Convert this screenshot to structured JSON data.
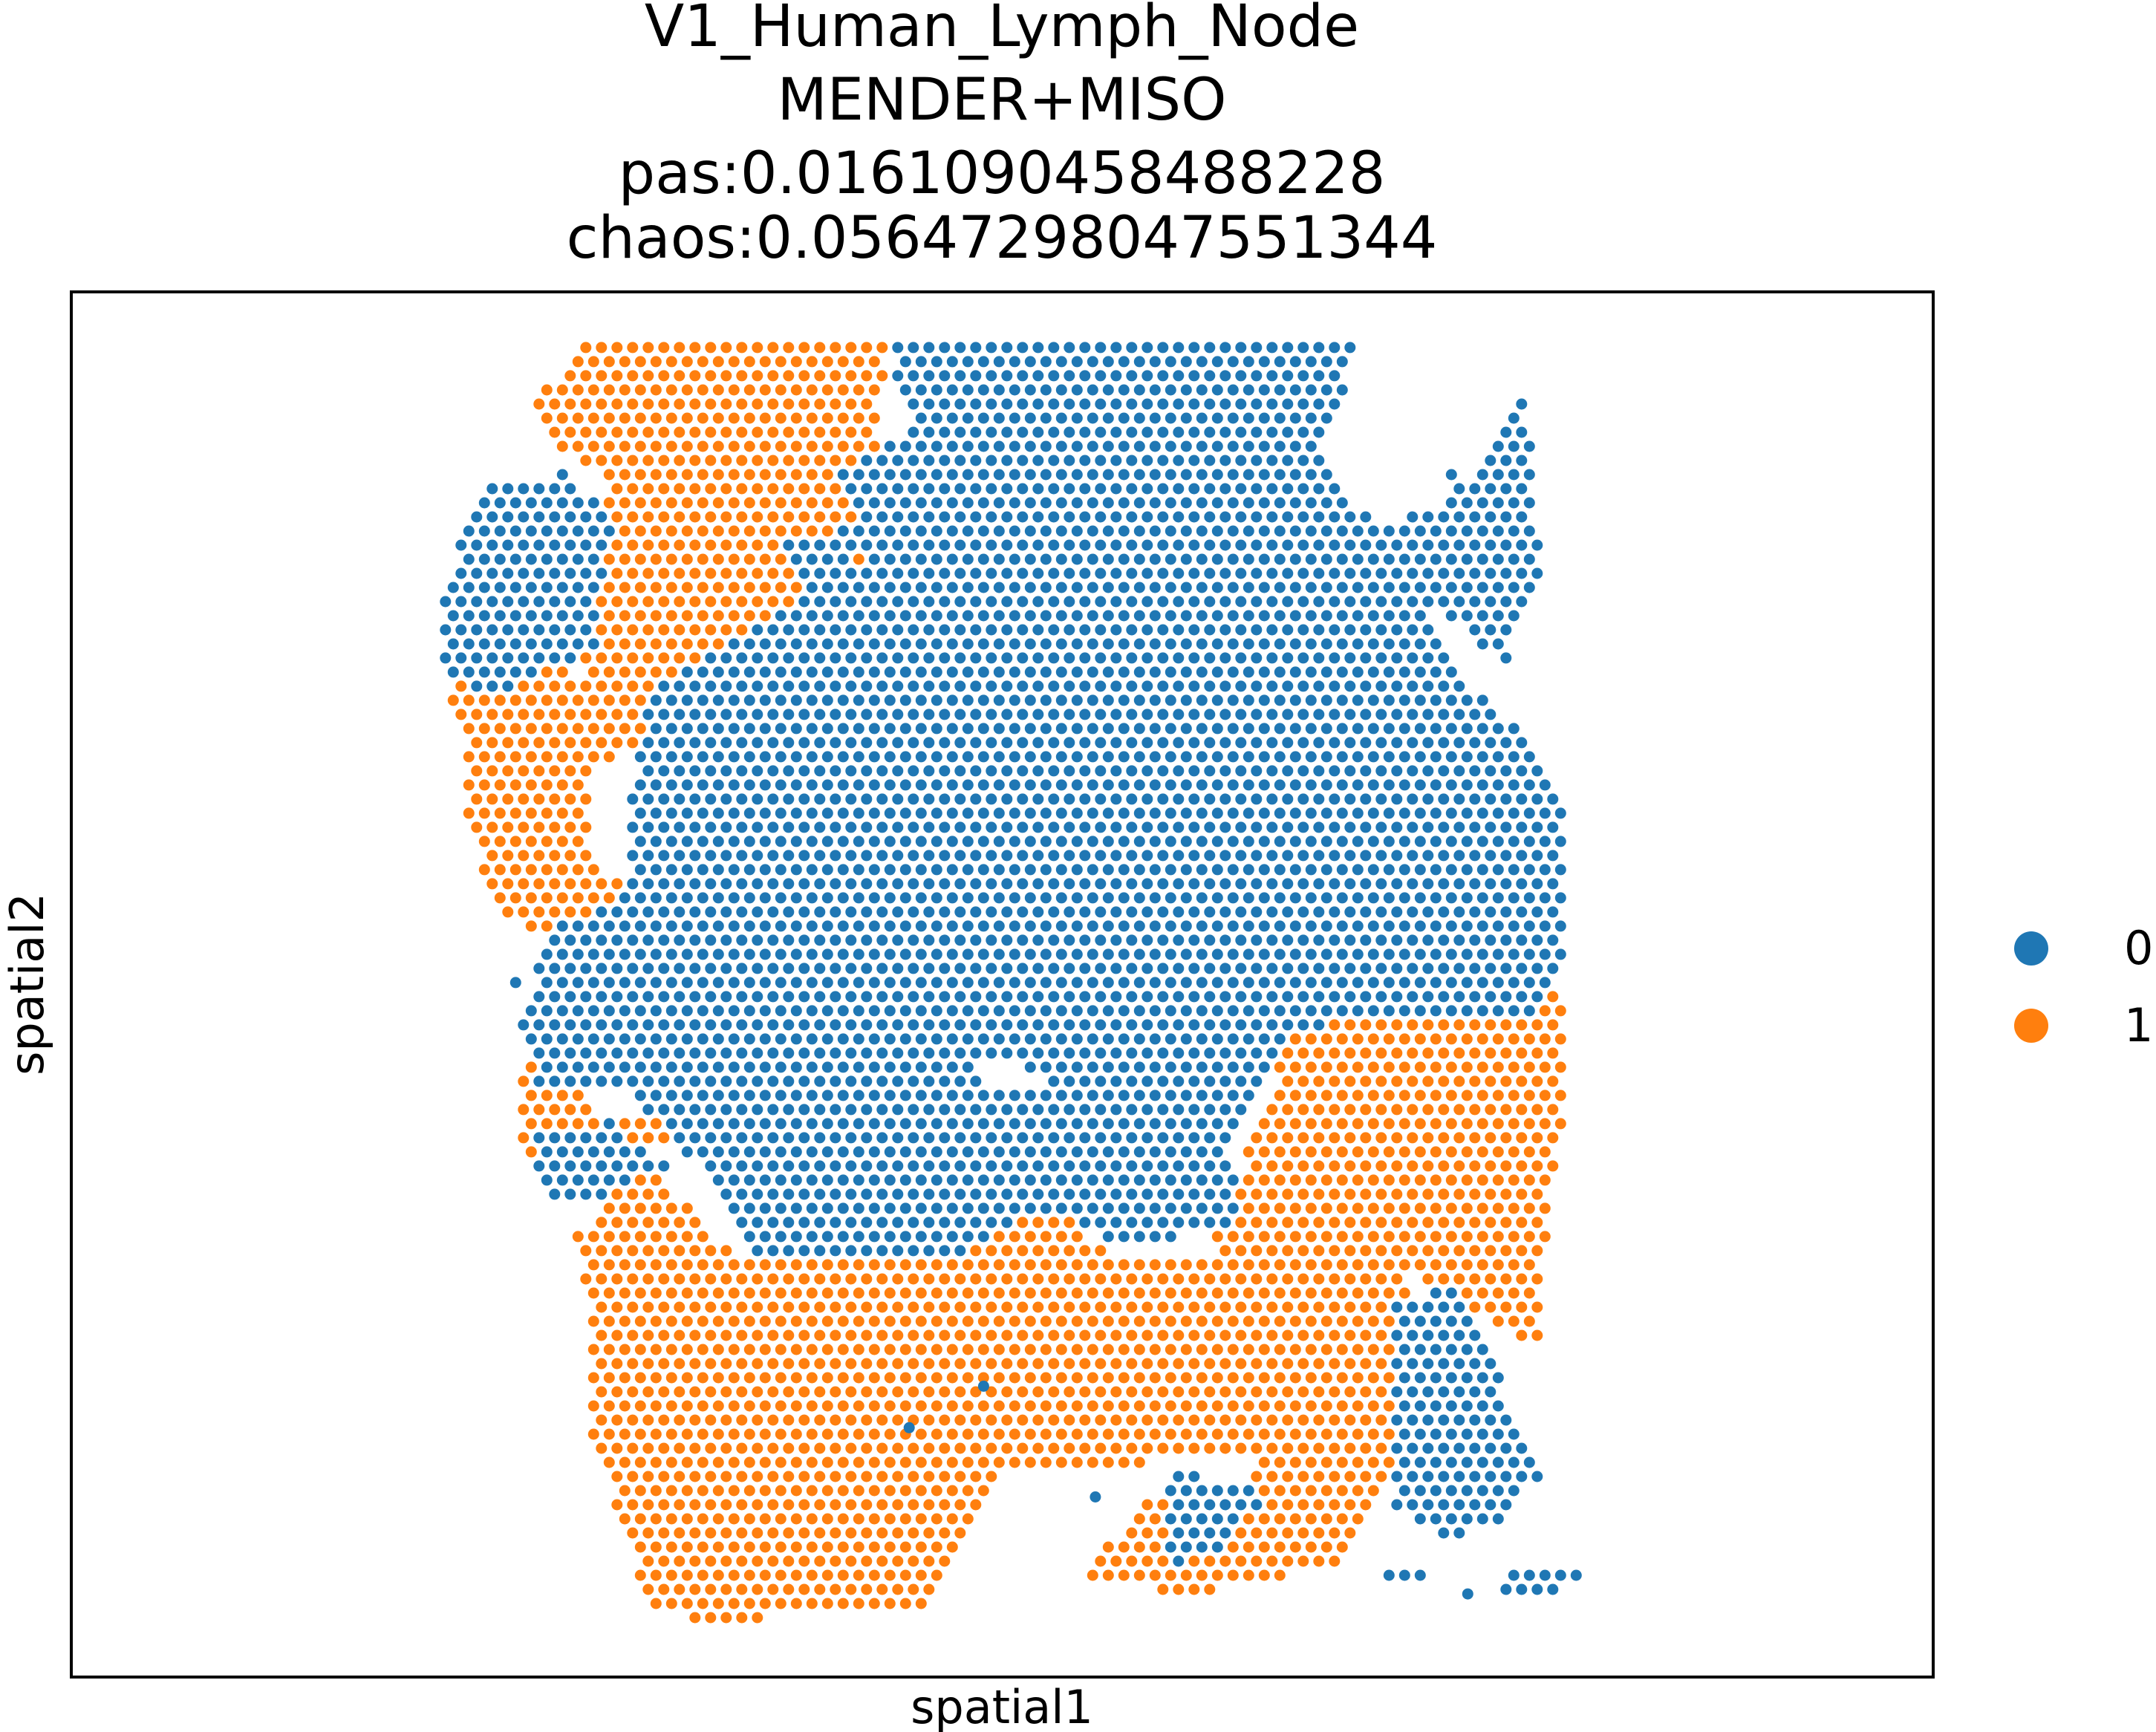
{
  "chart_data": {
    "type": "scatter",
    "title": [
      "V1_Human_Lymph_Node",
      "MENDER+MISO",
      "pas:0.0161090458488228",
      "chaos:0.05647298047551344"
    ],
    "xlabel": "spatial1",
    "ylabel": "spatial2",
    "xticks": [],
    "yticks": [],
    "grid": false,
    "legend_position": "right",
    "series": [
      {
        "name": "0",
        "color": "#1f77b4"
      },
      {
        "name": "1",
        "color": "#ff7f0e"
      }
    ],
    "regions": {
      "cluster_1": [
        [
          [
            0.27,
            0.04
          ],
          [
            0.44,
            0.04
          ],
          [
            0.43,
            0.1
          ],
          [
            0.45,
            0.2
          ],
          [
            0.39,
            0.23
          ],
          [
            0.33,
            0.28
          ],
          [
            0.29,
            0.31
          ],
          [
            0.27,
            0.27
          ],
          [
            0.29,
            0.14
          ],
          [
            0.26,
            0.11
          ],
          [
            0.25,
            0.08
          ],
          [
            0.26,
            0.06
          ]
        ],
        [
          [
            0.41,
            0.21
          ],
          [
            0.45,
            0.15
          ],
          [
            0.45,
            0.22
          ],
          [
            0.41,
            0.23
          ]
        ],
        [
          [
            0.22,
            0.23
          ],
          [
            0.26,
            0.27
          ],
          [
            0.33,
            0.3
          ],
          [
            0.28,
            0.35
          ],
          [
            0.28,
            0.4
          ],
          [
            0.3,
            0.44
          ],
          [
            0.27,
            0.47
          ],
          [
            0.23,
            0.45
          ],
          [
            0.21,
            0.37
          ],
          [
            0.21,
            0.31
          ],
          [
            0.2,
            0.29
          ]
        ],
        [
          [
            0.61,
            0.19
          ],
          [
            0.63,
            0.21
          ],
          [
            0.66,
            0.28
          ],
          [
            0.62,
            0.3
          ],
          [
            0.59,
            0.24
          ]
        ],
        [
          [
            0.24,
            0.55
          ],
          [
            0.27,
            0.56
          ],
          [
            0.29,
            0.61
          ],
          [
            0.26,
            0.66
          ],
          [
            0.24,
            0.61
          ]
        ],
        [
          [
            0.29,
            0.59
          ],
          [
            0.34,
            0.61
          ],
          [
            0.32,
            0.62
          ],
          [
            0.3,
            0.61
          ]
        ],
        [
          [
            0.66,
            0.52
          ],
          [
            0.8,
            0.5
          ],
          [
            0.8,
            0.6
          ],
          [
            0.79,
            0.7
          ],
          [
            0.79,
            0.76
          ],
          [
            0.74,
            0.73
          ],
          [
            0.72,
            0.71
          ],
          [
            0.71,
            0.75
          ],
          [
            0.71,
            0.85
          ],
          [
            0.68,
            0.92
          ],
          [
            0.6,
            0.94
          ],
          [
            0.54,
            0.93
          ],
          [
            0.58,
            0.87
          ],
          [
            0.62,
            0.87
          ],
          [
            0.64,
            0.84
          ],
          [
            0.59,
            0.84
          ],
          [
            0.57,
            0.85
          ],
          [
            0.5,
            0.85
          ],
          [
            0.48,
            0.9
          ],
          [
            0.46,
            0.95
          ],
          [
            0.34,
            0.96
          ],
          [
            0.31,
            0.95
          ],
          [
            0.3,
            0.9
          ],
          [
            0.28,
            0.83
          ],
          [
            0.28,
            0.74
          ],
          [
            0.27,
            0.68
          ],
          [
            0.31,
            0.63
          ],
          [
            0.36,
            0.7
          ],
          [
            0.39,
            0.7
          ],
          [
            0.42,
            0.7
          ],
          [
            0.46,
            0.7
          ],
          [
            0.51,
            0.67
          ],
          [
            0.53,
            0.66
          ],
          [
            0.56,
            0.7
          ],
          [
            0.61,
            0.7
          ]
        ],
        [
          [
            0.79,
            0.49
          ],
          [
            0.8,
            0.51
          ],
          [
            0.79,
            0.52
          ]
        ]
      ],
      "cluster_0": [
        [
          [
            0.44,
            0.04
          ],
          [
            0.69,
            0.04
          ],
          [
            0.68,
            0.09
          ],
          [
            0.67,
            0.12
          ],
          [
            0.7,
            0.17
          ],
          [
            0.74,
            0.15
          ],
          [
            0.73,
            0.12
          ],
          [
            0.75,
            0.14
          ],
          [
            0.78,
            0.07
          ],
          [
            0.79,
            0.2
          ],
          [
            0.77,
            0.27
          ],
          [
            0.73,
            0.22
          ],
          [
            0.74,
            0.27
          ],
          [
            0.78,
            0.32
          ],
          [
            0.8,
            0.37
          ],
          [
            0.8,
            0.48
          ],
          [
            0.79,
            0.52
          ],
          [
            0.66,
            0.53
          ],
          [
            0.62,
            0.61
          ],
          [
            0.63,
            0.67
          ],
          [
            0.57,
            0.69
          ],
          [
            0.52,
            0.66
          ],
          [
            0.47,
            0.7
          ],
          [
            0.43,
            0.7
          ],
          [
            0.37,
            0.7
          ],
          [
            0.35,
            0.66
          ],
          [
            0.33,
            0.62
          ],
          [
            0.3,
            0.58
          ],
          [
            0.27,
            0.57
          ],
          [
            0.25,
            0.57
          ],
          [
            0.24,
            0.52
          ],
          [
            0.26,
            0.46
          ],
          [
            0.3,
            0.43
          ],
          [
            0.3,
            0.36
          ],
          [
            0.31,
            0.29
          ],
          [
            0.38,
            0.23
          ],
          [
            0.43,
            0.2
          ],
          [
            0.41,
            0.13
          ],
          [
            0.45,
            0.1
          ]
        ],
        [
          [
            0.22,
            0.14
          ],
          [
            0.27,
            0.13
          ],
          [
            0.29,
            0.17
          ],
          [
            0.28,
            0.26
          ],
          [
            0.26,
            0.27
          ],
          [
            0.23,
            0.29
          ],
          [
            0.2,
            0.28
          ],
          [
            0.2,
            0.23
          ],
          [
            0.21,
            0.16
          ]
        ],
        [
          [
            0.38,
            0.18
          ],
          [
            0.42,
            0.17
          ],
          [
            0.42,
            0.21
          ],
          [
            0.4,
            0.22
          ]
        ],
        [
          [
            0.25,
            0.61
          ],
          [
            0.29,
            0.6
          ],
          [
            0.32,
            0.63
          ],
          [
            0.28,
            0.66
          ],
          [
            0.25,
            0.65
          ]
        ],
        [
          [
            0.71,
            0.73
          ],
          [
            0.74,
            0.72
          ],
          [
            0.76,
            0.75
          ],
          [
            0.77,
            0.8
          ],
          [
            0.79,
            0.85
          ],
          [
            0.77,
            0.89
          ],
          [
            0.74,
            0.9
          ],
          [
            0.71,
            0.88
          ],
          [
            0.71,
            0.82
          ]
        ],
        [
          [
            0.59,
            0.85
          ],
          [
            0.63,
            0.86
          ],
          [
            0.64,
            0.87
          ],
          [
            0.62,
            0.91
          ],
          [
            0.59,
            0.92
          ],
          [
            0.59,
            0.89
          ]
        ],
        [
          [
            0.7,
            0.92
          ],
          [
            0.73,
            0.92
          ],
          [
            0.73,
            0.93
          ],
          [
            0.7,
            0.93
          ]
        ],
        [
          [
            0.77,
            0.92
          ],
          [
            0.82,
            0.92
          ],
          [
            0.8,
            0.94
          ],
          [
            0.77,
            0.94
          ]
        ],
        [
          [
            0.23,
            0.49
          ],
          [
            0.25,
            0.49
          ],
          [
            0.24,
            0.5
          ]
        ]
      ],
      "singles_0": [
        [
          0.49,
          0.79
        ],
        [
          0.55,
          0.87
        ],
        [
          0.45,
          0.82
        ],
        [
          0.75,
          0.94
        ]
      ],
      "hole": [
        [
          0.48,
          0.55
        ],
        [
          0.51,
          0.55
        ],
        [
          0.52,
          0.57
        ],
        [
          0.49,
          0.58
        ]
      ]
    }
  }
}
